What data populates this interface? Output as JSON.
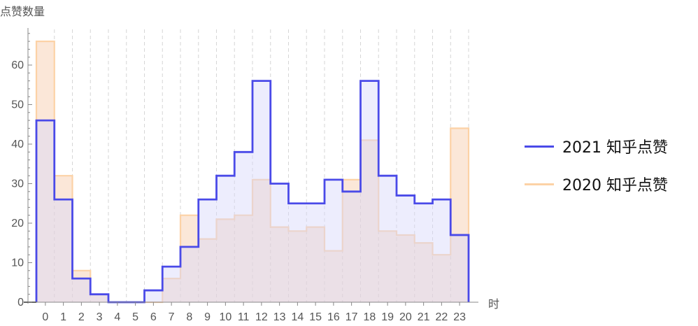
{
  "chart_data": {
    "type": "bar",
    "subtype": "histogram-step",
    "ylabel": "点赞数量",
    "xlabel": "时",
    "categories": [
      "0",
      "1",
      "2",
      "3",
      "4",
      "5",
      "6",
      "7",
      "8",
      "9",
      "10",
      "11",
      "12",
      "13",
      "14",
      "15",
      "16",
      "17",
      "18",
      "19",
      "20",
      "21",
      "22",
      "23"
    ],
    "ylim": [
      0,
      69
    ],
    "yticks": [
      0,
      10,
      20,
      30,
      40,
      50,
      60
    ],
    "grid": {
      "x": true,
      "y": false
    },
    "legend_position": "right",
    "series": [
      {
        "name": "2021 知乎点赞",
        "color": "#4a4ae8",
        "fill": "#d8d8fa",
        "values": [
          46,
          26,
          6,
          2,
          0,
          0,
          3,
          9,
          14,
          26,
          32,
          38,
          56,
          30,
          25,
          25,
          31,
          28,
          56,
          32,
          27,
          25,
          26,
          17
        ]
      },
      {
        "name": "2020 知乎点赞",
        "color": "#fcd2a6",
        "fill": "#f7c9a8",
        "values": [
          66,
          32,
          8,
          2,
          0,
          0,
          0,
          6,
          22,
          16,
          21,
          22,
          31,
          19,
          18,
          19,
          13,
          31,
          41,
          18,
          17,
          15,
          12,
          44
        ]
      }
    ]
  }
}
